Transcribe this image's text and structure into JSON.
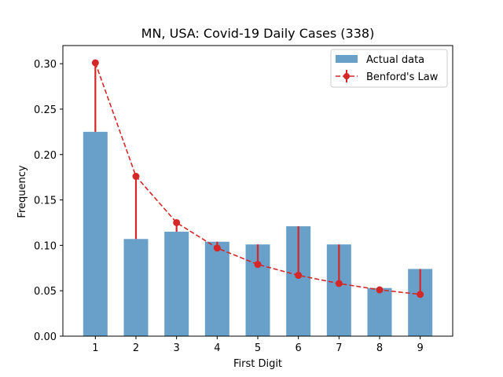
{
  "chart_data": {
    "type": "bar",
    "title": "MN, USA: Covid-19 Daily Cases (338)",
    "xlabel": "First Digit",
    "ylabel": "Frequency",
    "categories": [
      "1",
      "2",
      "3",
      "4",
      "5",
      "6",
      "7",
      "8",
      "9"
    ],
    "x": [
      1,
      2,
      3,
      4,
      5,
      6,
      7,
      8,
      9
    ],
    "ylim": [
      0,
      0.32
    ],
    "yticks": [
      0.0,
      0.05,
      0.1,
      0.15,
      0.2,
      0.25,
      0.3
    ],
    "ytick_labels": [
      "0.00",
      "0.05",
      "0.10",
      "0.15",
      "0.20",
      "0.25",
      "0.30"
    ],
    "legend_position": "top-right",
    "series": [
      {
        "name": "Actual data",
        "kind": "bar",
        "color": "#4f8fbf",
        "values": [
          0.225,
          0.107,
          0.115,
          0.104,
          0.101,
          0.121,
          0.101,
          0.053,
          0.074
        ]
      },
      {
        "name": "Benford's Law",
        "kind": "line-errorbar",
        "color": "#d62728",
        "linestyle": "dashed",
        "marker": "circle",
        "values": [
          0.301,
          0.176,
          0.125,
          0.097,
          0.079,
          0.067,
          0.058,
          0.051,
          0.046
        ]
      }
    ]
  }
}
